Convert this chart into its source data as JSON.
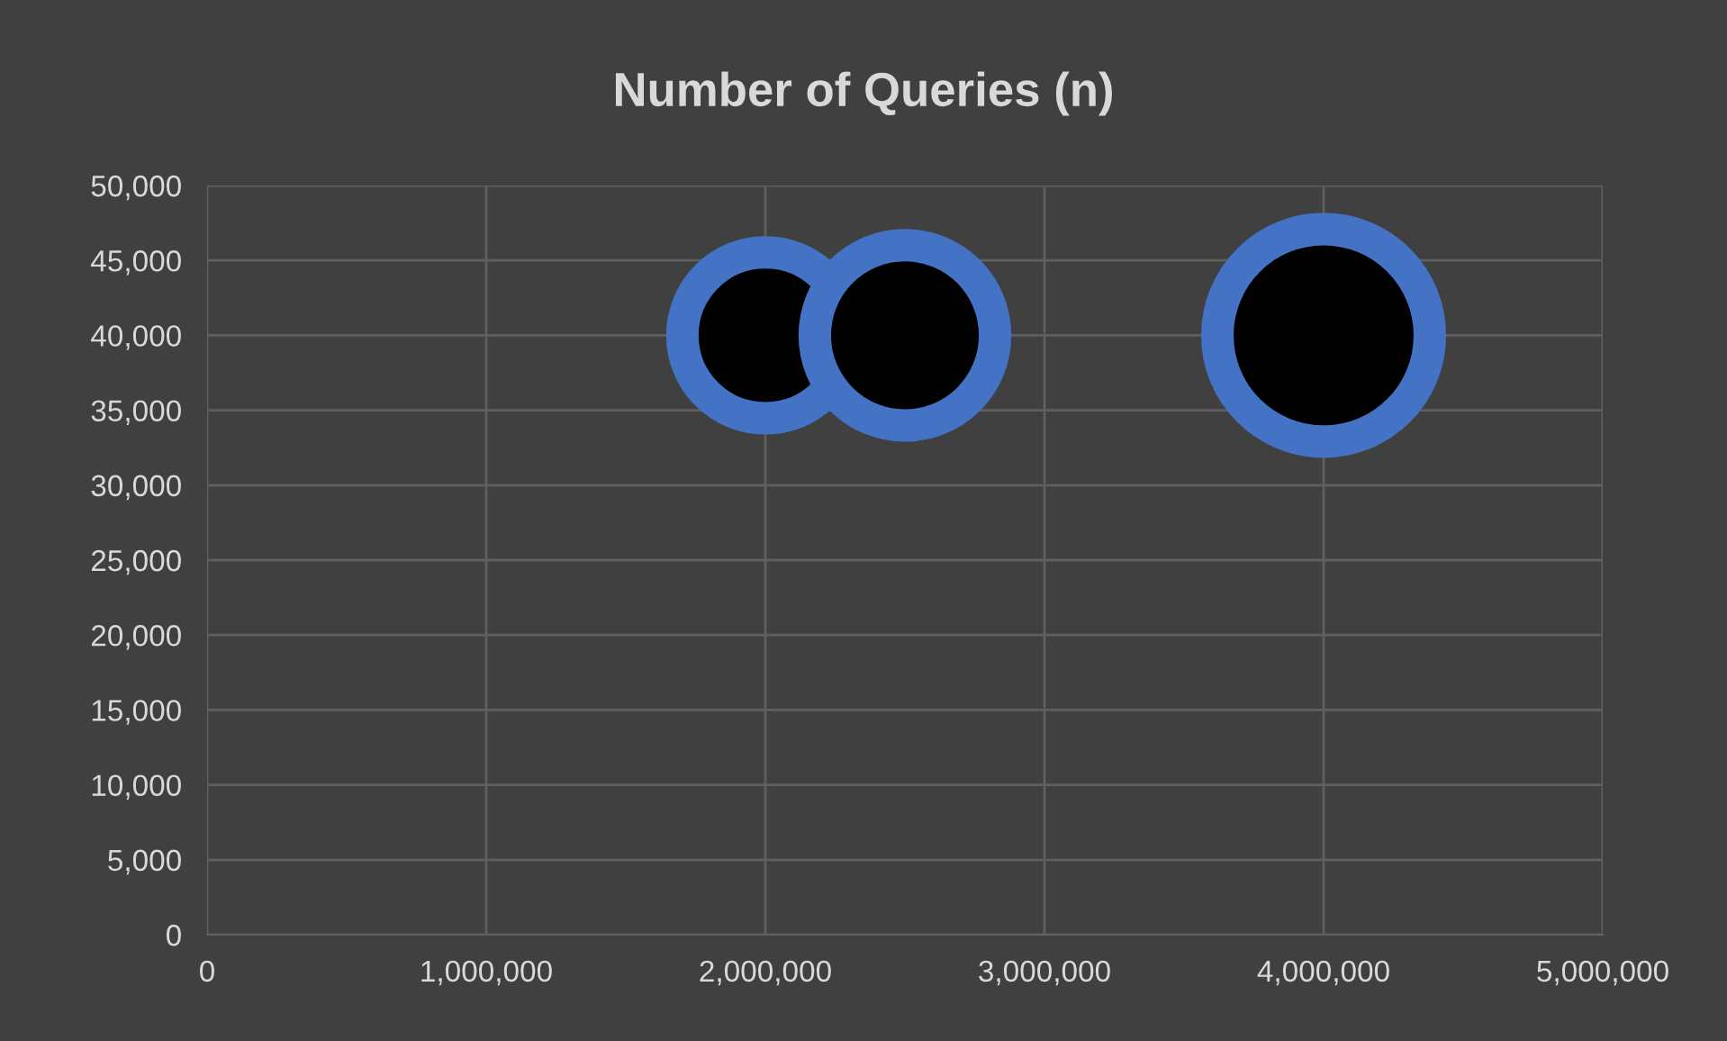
{
  "chart_data": {
    "type": "bubble",
    "title": "Number of Queries (n)",
    "x": [
      2000000,
      2500000,
      4000000
    ],
    "values": [
      40000,
      40000,
      40000
    ],
    "sizes": [
      0.61,
      0.72,
      1
    ],
    "color": "#4472c4",
    "xlim": [
      0,
      5000000
    ],
    "xticks": [
      {
        "value": 0,
        "label": "0"
      },
      {
        "value": 1000000,
        "label": "1,000,000"
      },
      {
        "value": 2000000,
        "label": "2,000,000"
      },
      {
        "value": 3000000,
        "label": "3,000,000"
      },
      {
        "value": 4000000,
        "label": "4,000,000"
      },
      {
        "value": 5000000,
        "label": "5,000,000"
      }
    ],
    "ylim": [
      0,
      50000
    ],
    "yticks": [
      {
        "value": 0,
        "label": "0"
      },
      {
        "value": 5000,
        "label": "5,000"
      },
      {
        "value": 10000,
        "label": "10,000"
      },
      {
        "value": 15000,
        "label": "15,000"
      },
      {
        "value": 20000,
        "label": "20,000"
      },
      {
        "value": 25000,
        "label": "25,000"
      },
      {
        "value": 30000,
        "label": "30,000"
      },
      {
        "value": 35000,
        "label": "35,000"
      },
      {
        "value": 40000,
        "label": "40,000"
      },
      {
        "value": 45000,
        "label": "45,000"
      },
      {
        "value": 50000,
        "label": "50,000"
      }
    ],
    "grid": true
  }
}
